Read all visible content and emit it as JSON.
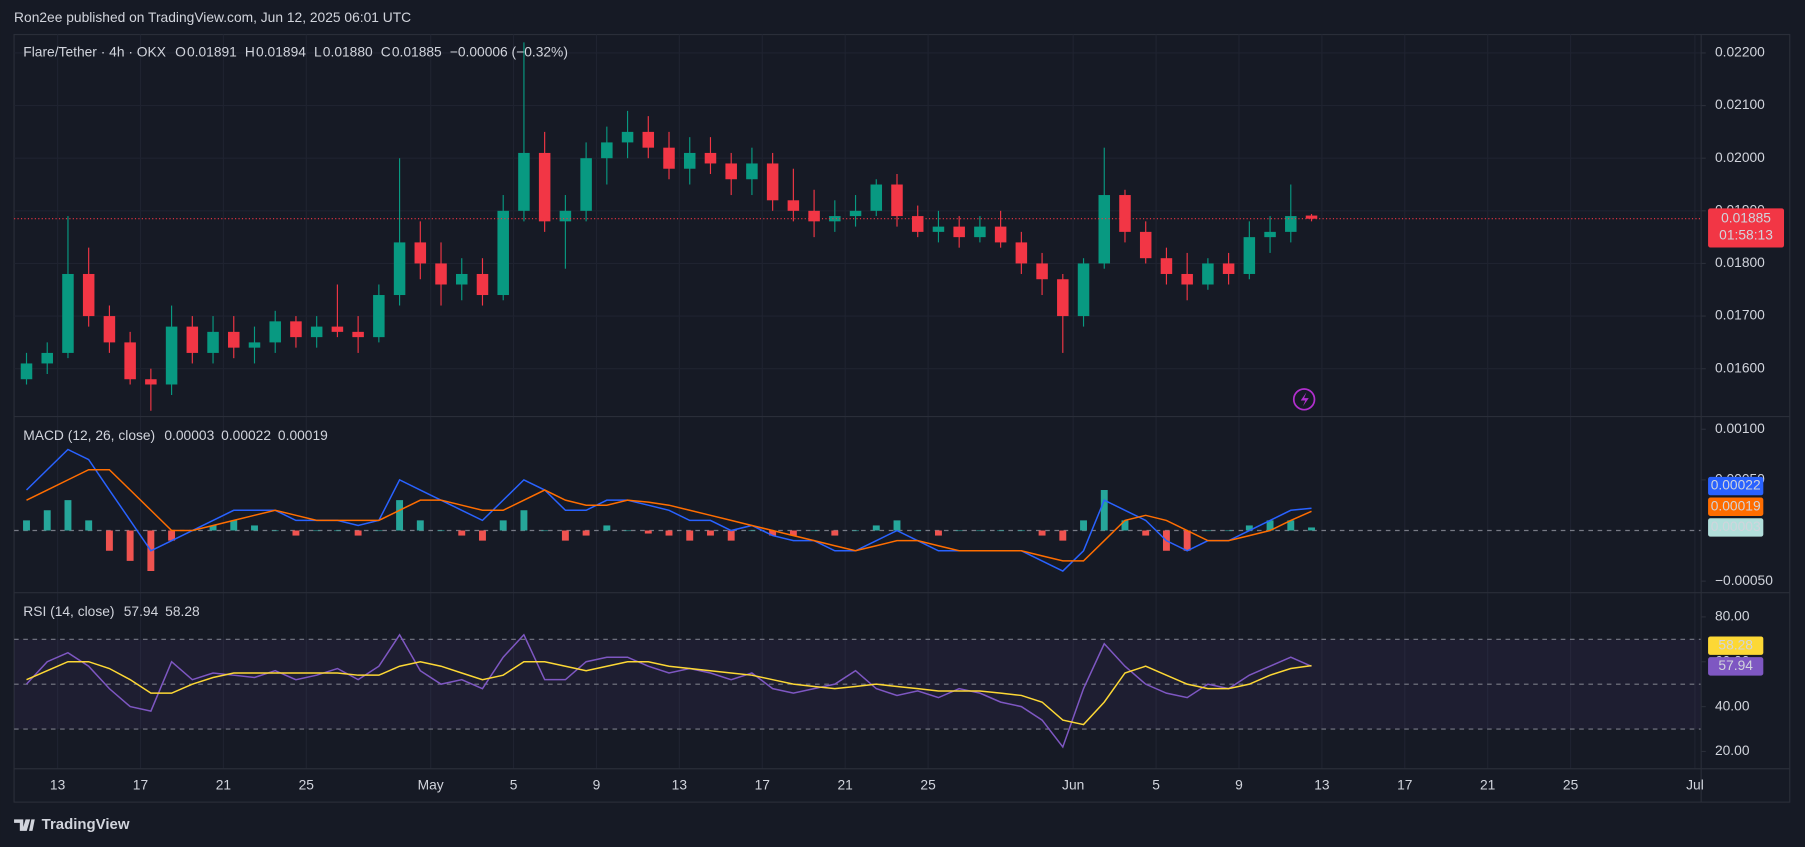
{
  "header": {
    "text": "Ron2ee published on TradingView.com, Jun 12, 2025 06:01 UTC"
  },
  "footer": {
    "brand": "TradingView"
  },
  "chart_data": [
    {
      "type": "candlestick",
      "title": "Flare/Tether · 4h · OKX",
      "ohlc_legend": [
        {
          "key": "O",
          "value": "0.01891"
        },
        {
          "key": "H",
          "value": "0.01894"
        },
        {
          "key": "L",
          "value": "0.01880"
        },
        {
          "key": "C",
          "value": "0.01885"
        }
      ],
      "change": "−0.00006 (−0.32%)",
      "last_price_label": "0.01885",
      "countdown": "01:58:13",
      "up_color": "#089981",
      "down_color": "#f23645",
      "grid": true,
      "ylim": [
        0.01509,
        0.02235
      ],
      "yticks": [
        {
          "value": 0.016,
          "label": "0.01600"
        },
        {
          "value": 0.017,
          "label": "0.01700"
        },
        {
          "value": 0.018,
          "label": "0.01800"
        },
        {
          "value": 0.019,
          "label": "0.01900"
        },
        {
          "value": 0.02,
          "label": "0.02000"
        },
        {
          "value": 0.021,
          "label": "0.02100"
        },
        {
          "value": 0.022,
          "label": "0.02200"
        }
      ],
      "xlim": [
        -0.1,
        81.3
      ],
      "xticks": [
        {
          "value": 2,
          "label": "13"
        },
        {
          "value": 6,
          "label": "17"
        },
        {
          "value": 10,
          "label": "21"
        },
        {
          "value": 14,
          "label": "25"
        },
        {
          "value": 20,
          "label": "May"
        },
        {
          "value": 24,
          "label": "5"
        },
        {
          "value": 28,
          "label": "9"
        },
        {
          "value": 32,
          "label": "13"
        },
        {
          "value": 36,
          "label": "17"
        },
        {
          "value": 40,
          "label": "21"
        },
        {
          "value": 44,
          "label": "25"
        },
        {
          "value": 51,
          "label": "Jun"
        },
        {
          "value": 55,
          "label": "5"
        },
        {
          "value": 59,
          "label": "9"
        },
        {
          "value": 63,
          "label": "13"
        },
        {
          "value": 67,
          "label": "17"
        },
        {
          "value": 71,
          "label": "21"
        },
        {
          "value": 75,
          "label": "25"
        },
        {
          "value": 81,
          "label": "Jul"
        }
      ],
      "open": [
        0.0158,
        0.0161,
        0.0163,
        0.0178,
        0.017,
        0.0165,
        0.0158,
        0.0157,
        0.0168,
        0.0163,
        0.0167,
        0.0164,
        0.0165,
        0.0169,
        0.0166,
        0.0168,
        0.0167,
        0.0166,
        0.0174,
        0.0184,
        0.018,
        0.0176,
        0.0178,
        0.0174,
        0.019,
        0.0201,
        0.0188,
        0.019,
        0.02,
        0.0203,
        0.0205,
        0.0202,
        0.0198,
        0.0201,
        0.0199,
        0.0196,
        0.0199,
        0.0192,
        0.019,
        0.0188,
        0.0189,
        0.019,
        0.0195,
        0.0189,
        0.0186,
        0.0187,
        0.0185,
        0.0187,
        0.0184,
        0.018,
        0.0177,
        0.017,
        0.018,
        0.0193,
        0.0186,
        0.0181,
        0.0178,
        0.0176,
        0.018,
        0.0178,
        0.0185,
        0.0186,
        0.01891
      ],
      "high": [
        0.0163,
        0.0165,
        0.0189,
        0.0183,
        0.0172,
        0.0167,
        0.016,
        0.0172,
        0.017,
        0.017,
        0.017,
        0.0168,
        0.0171,
        0.017,
        0.017,
        0.0176,
        0.017,
        0.0176,
        0.02,
        0.0188,
        0.0184,
        0.0181,
        0.0181,
        0.0193,
        0.0222,
        0.0205,
        0.0193,
        0.0203,
        0.0206,
        0.0209,
        0.0208,
        0.0205,
        0.0204,
        0.0204,
        0.0201,
        0.0202,
        0.0201,
        0.0198,
        0.0194,
        0.0192,
        0.0193,
        0.0196,
        0.0197,
        0.0191,
        0.019,
        0.0189,
        0.0189,
        0.019,
        0.0186,
        0.0182,
        0.0178,
        0.0181,
        0.0202,
        0.0194,
        0.0188,
        0.0183,
        0.0182,
        0.0181,
        0.0182,
        0.0188,
        0.0189,
        0.0195,
        0.01894
      ],
      "low": [
        0.0157,
        0.0159,
        0.0162,
        0.0168,
        0.0163,
        0.0157,
        0.0152,
        0.0155,
        0.0161,
        0.0161,
        0.0162,
        0.0161,
        0.0163,
        0.0164,
        0.0164,
        0.0166,
        0.0163,
        0.0165,
        0.0172,
        0.0177,
        0.0172,
        0.0173,
        0.0172,
        0.0173,
        0.0188,
        0.0186,
        0.0179,
        0.0188,
        0.0195,
        0.02,
        0.02,
        0.0196,
        0.0195,
        0.0197,
        0.0193,
        0.0193,
        0.019,
        0.0188,
        0.0185,
        0.0186,
        0.0187,
        0.0189,
        0.0187,
        0.0185,
        0.0184,
        0.0183,
        0.0184,
        0.0183,
        0.0178,
        0.0174,
        0.0163,
        0.0168,
        0.0179,
        0.0184,
        0.018,
        0.0176,
        0.0173,
        0.0175,
        0.0176,
        0.0177,
        0.0182,
        0.0184,
        0.0188
      ],
      "close": [
        0.0161,
        0.0163,
        0.0178,
        0.017,
        0.0165,
        0.0158,
        0.0157,
        0.0168,
        0.0163,
        0.0167,
        0.0164,
        0.0165,
        0.0169,
        0.0166,
        0.0168,
        0.0167,
        0.0166,
        0.0174,
        0.0184,
        0.018,
        0.0176,
        0.0178,
        0.0174,
        0.019,
        0.0201,
        0.0188,
        0.019,
        0.02,
        0.0203,
        0.0205,
        0.0202,
        0.0198,
        0.0201,
        0.0199,
        0.0196,
        0.0199,
        0.0192,
        0.019,
        0.0188,
        0.0189,
        0.019,
        0.0195,
        0.0189,
        0.0186,
        0.0187,
        0.0185,
        0.0187,
        0.0184,
        0.018,
        0.0177,
        0.017,
        0.018,
        0.0193,
        0.0186,
        0.0181,
        0.0178,
        0.0176,
        0.018,
        0.0178,
        0.0185,
        0.0186,
        0.0189,
        0.01885
      ]
    },
    {
      "type": "macd",
      "title": "MACD (12, 26, close)",
      "ylim": [
        -0.000614,
        0.001125
      ],
      "yticks": [
        {
          "value": -0.0005,
          "label": "−0.00050"
        },
        {
          "value": 0.0005,
          "label": "0.00050"
        },
        {
          "value": 0.001,
          "label": "0.00100"
        }
      ],
      "series": [
        {
          "kind": "histogram",
          "up_color": "#26a69a",
          "down_color": "#ef5350",
          "color": "#b2dfdb",
          "legend_value": "0.00003",
          "values": [
            0.0001,
            0.0002,
            0.0003,
            0.0001,
            -0.0002,
            -0.0003,
            -0.0004,
            -0.0001,
            0,
            5e-05,
            0.0001,
            5e-05,
            0,
            -5e-05,
            0,
            0,
            -5e-05,
            0,
            0.0003,
            0.0001,
            0,
            -5e-05,
            -0.0001,
            0.0001,
            0.0002,
            0,
            -0.0001,
            -5e-05,
            5e-05,
            0,
            -3e-05,
            -5e-05,
            -0.0001,
            -5e-05,
            -0.0001,
            0,
            -5e-05,
            -5e-05,
            0,
            -5e-05,
            0,
            5e-05,
            0.0001,
            0,
            -5e-05,
            0,
            0,
            0,
            0,
            -5e-05,
            -0.0001,
            0.0001,
            0.0004,
            0.0001,
            -5e-05,
            -0.0002,
            -0.0002,
            0,
            0,
            5e-05,
            0.0001,
            0.0001,
            3e-05
          ]
        },
        {
          "kind": "line",
          "color": "#2962ff",
          "legend_value": "0.00022",
          "values": [
            0.0004,
            0.0006,
            0.0008,
            0.0007,
            0.0004,
            0.0001,
            -0.0002,
            -0.0001,
            0,
            0.0001,
            0.0002,
            0.0002,
            0.0002,
            0.0001,
            0.0001,
            0.0001,
            5e-05,
            0.0001,
            0.0005,
            0.0004,
            0.0003,
            0.0002,
            0.0001,
            0.0003,
            0.0005,
            0.0004,
            0.0002,
            0.0002,
            0.0003,
            0.0003,
            0.00025,
            0.0002,
            0.0001,
            0.0001,
            0,
            5e-05,
            -5e-05,
            -0.0001,
            -0.0001,
            -0.0002,
            -0.0002,
            -0.0001,
            0,
            -0.0001,
            -0.0002,
            -0.0002,
            -0.0002,
            -0.0002,
            -0.0002,
            -0.0003,
            -0.0004,
            -0.0002,
            0.0003,
            0.0002,
            0.0001,
            -0.0001,
            -0.0002,
            -0.0001,
            -0.0001,
            0,
            0.0001,
            0.0002,
            0.00022
          ]
        },
        {
          "kind": "line",
          "color": "#ff6d00",
          "legend_value": "0.00019",
          "values": [
            0.0003,
            0.0004,
            0.0005,
            0.0006,
            0.0006,
            0.0004,
            0.0002,
            0,
            0,
            5e-05,
            0.0001,
            0.00015,
            0.0002,
            0.00015,
            0.0001,
            0.0001,
            0.0001,
            0.0001,
            0.0002,
            0.0003,
            0.0003,
            0.00025,
            0.0002,
            0.0002,
            0.0003,
            0.0004,
            0.0003,
            0.00025,
            0.00025,
            0.0003,
            0.00028,
            0.00025,
            0.0002,
            0.00015,
            0.0001,
            5e-05,
            0,
            -5e-05,
            -0.0001,
            -0.00015,
            -0.0002,
            -0.00015,
            -0.0001,
            -0.0001,
            -0.00015,
            -0.0002,
            -0.0002,
            -0.0002,
            -0.0002,
            -0.00025,
            -0.0003,
            -0.0003,
            -0.0001,
            0.0001,
            0.00015,
            0.0001,
            0,
            -0.0001,
            -0.0001,
            -5e-05,
            0,
            0.0001,
            0.00019
          ]
        }
      ]
    },
    {
      "type": "rsi",
      "title": "RSI (14, close)",
      "ylim": [
        12.3,
        90.8
      ],
      "yticks": [
        {
          "value": 20,
          "label": "20.00"
        },
        {
          "value": 40,
          "label": "40.00"
        },
        {
          "value": 60,
          "label": "60.00"
        },
        {
          "value": 80,
          "label": "80.00"
        }
      ],
      "levels": [
        70,
        50,
        30
      ],
      "series": [
        {
          "kind": "line",
          "color": "#7e57c2",
          "legend_value": "57.94",
          "values": [
            50,
            60,
            64,
            58,
            48,
            40,
            38,
            60,
            52,
            55,
            54,
            53,
            56,
            52,
            54,
            57,
            52,
            58,
            72,
            56,
            50,
            52,
            48,
            62,
            72,
            52,
            52,
            60,
            62,
            62,
            58,
            55,
            57,
            55,
            52,
            55,
            48,
            46,
            48,
            50,
            56,
            48,
            45,
            47,
            44,
            48,
            46,
            42,
            40,
            34,
            22,
            48,
            68,
            58,
            50,
            46,
            44,
            50,
            48,
            54,
            58,
            62,
            57.94
          ]
        },
        {
          "kind": "line",
          "color": "#fdd835",
          "legend_value": "58.28",
          "values": [
            52,
            56,
            60,
            60,
            57,
            52,
            46,
            46,
            50,
            53,
            55,
            55,
            55,
            55,
            55,
            55,
            54,
            54,
            58,
            60,
            58,
            55,
            52,
            54,
            60,
            60,
            58,
            56,
            58,
            60,
            60,
            58,
            57,
            56,
            55,
            54,
            52,
            50,
            49,
            48,
            49,
            50,
            49,
            48,
            47,
            47,
            47,
            46,
            45,
            42,
            34,
            32,
            42,
            55,
            58,
            54,
            50,
            48,
            48,
            50,
            54,
            57,
            58.28
          ]
        }
      ]
    }
  ]
}
